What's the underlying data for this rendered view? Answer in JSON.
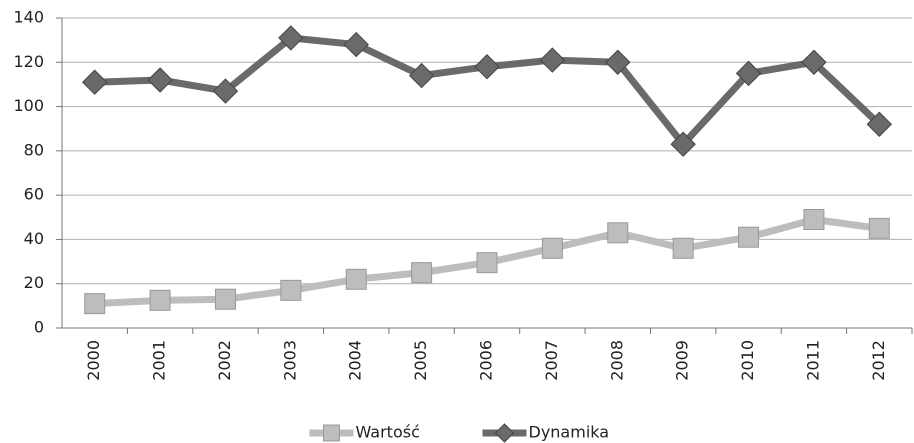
{
  "chart_data": {
    "type": "line",
    "categories": [
      "2000",
      "2001",
      "2002",
      "2003",
      "2004",
      "2005",
      "2006",
      "2007",
      "2008",
      "2009",
      "2010",
      "2011",
      "2012"
    ],
    "series": [
      {
        "name": "Wartość",
        "color": "#bdbdbd",
        "marker": "square",
        "values": [
          11,
          12.5,
          13,
          17,
          22,
          25,
          29.5,
          36,
          43,
          36,
          41,
          49,
          45
        ]
      },
      {
        "name": "Dynamika",
        "color": "#6a6a6a",
        "marker": "diamond",
        "values": [
          111,
          112,
          107,
          131,
          128,
          114,
          118,
          121,
          120,
          83,
          115,
          120,
          92
        ]
      }
    ],
    "ylim": [
      0,
      140
    ],
    "yticks": [
      0,
      20,
      40,
      60,
      80,
      100,
      120,
      140
    ],
    "grid": true,
    "legend": "bottom"
  }
}
